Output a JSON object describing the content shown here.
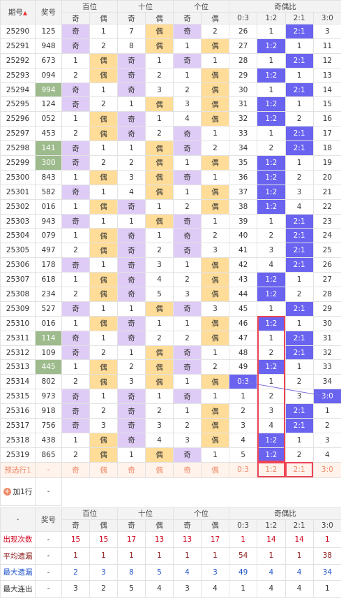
{
  "header": {
    "issue": "期号",
    "number": "奖号",
    "groups": [
      "百位",
      "十位",
      "个位",
      "奇偶比"
    ],
    "sub": [
      "奇",
      "偶",
      "奇",
      "偶",
      "奇",
      "偶",
      "0:3",
      "1:2",
      "2:1",
      "3:0"
    ]
  },
  "rows": [
    {
      "issue": "25290",
      "number": "125",
      "cells": [
        "奇",
        1,
        7,
        "偶",
        "奇",
        2,
        26,
        1,
        "2:1",
        3
      ]
    },
    {
      "issue": "25291",
      "number": "948",
      "cells": [
        "奇",
        2,
        8,
        "偶",
        1,
        "偶",
        27,
        "1:2",
        1,
        11
      ]
    },
    {
      "issue": "25292",
      "number": "673",
      "cells": [
        1,
        "偶",
        "奇",
        1,
        "奇",
        1,
        28,
        1,
        "2:1",
        12
      ]
    },
    {
      "issue": "25293",
      "number": "094",
      "cells": [
        2,
        "偶",
        "奇",
        2,
        1,
        "偶",
        29,
        "1:2",
        1,
        13
      ]
    },
    {
      "issue": "25294",
      "number": "994",
      "highlight": true,
      "cells": [
        "奇",
        1,
        "奇",
        3,
        2,
        "偶",
        30,
        1,
        "2:1",
        14
      ]
    },
    {
      "issue": "25295",
      "number": "124",
      "cells": [
        "奇",
        2,
        1,
        "偶",
        3,
        "偶",
        31,
        "1:2",
        1,
        15
      ]
    },
    {
      "issue": "25296",
      "number": "052",
      "cells": [
        1,
        "偶",
        "奇",
        1,
        4,
        "偶",
        32,
        "1:2",
        2,
        16
      ]
    },
    {
      "issue": "25297",
      "number": "453",
      "cells": [
        2,
        "偶",
        "奇",
        2,
        "奇",
        1,
        33,
        1,
        "2:1",
        17
      ]
    },
    {
      "issue": "25298",
      "number": "141",
      "highlight": true,
      "cells": [
        "奇",
        1,
        1,
        "偶",
        "奇",
        2,
        34,
        2,
        "2:1",
        18
      ]
    },
    {
      "issue": "25299",
      "number": "300",
      "highlight": true,
      "cells": [
        "奇",
        2,
        2,
        "偶",
        1,
        "偶",
        35,
        "1:2",
        1,
        19
      ]
    },
    {
      "issue": "25300",
      "number": "843",
      "cells": [
        1,
        "偶",
        3,
        "偶",
        "奇",
        1,
        36,
        "1:2",
        2,
        20
      ]
    },
    {
      "issue": "25301",
      "number": "582",
      "cells": [
        "奇",
        1,
        4,
        "偶",
        1,
        "偶",
        37,
        "1:2",
        3,
        21
      ]
    },
    {
      "issue": "25302",
      "number": "016",
      "cells": [
        1,
        "偶",
        "奇",
        1,
        2,
        "偶",
        38,
        "1:2",
        4,
        22
      ]
    },
    {
      "issue": "25303",
      "number": "943",
      "cells": [
        "奇",
        1,
        1,
        "偶",
        "奇",
        1,
        39,
        1,
        "2:1",
        23
      ]
    },
    {
      "issue": "25304",
      "number": "079",
      "cells": [
        1,
        "偶",
        "奇",
        1,
        "奇",
        2,
        40,
        2,
        "2:1",
        24
      ]
    },
    {
      "issue": "25305",
      "number": "497",
      "cells": [
        2,
        "偶",
        "奇",
        2,
        "奇",
        3,
        41,
        3,
        "2:1",
        25
      ]
    },
    {
      "issue": "25306",
      "number": "178",
      "cells": [
        "奇",
        1,
        "奇",
        3,
        1,
        "偶",
        42,
        4,
        "2:1",
        26
      ]
    },
    {
      "issue": "25307",
      "number": "618",
      "cells": [
        1,
        "偶",
        "奇",
        4,
        2,
        "偶",
        43,
        "1:2",
        1,
        27
      ]
    },
    {
      "issue": "25308",
      "number": "234",
      "cells": [
        2,
        "偶",
        "奇",
        5,
        3,
        "偶",
        44,
        "1:2",
        2,
        28
      ]
    },
    {
      "issue": "25309",
      "number": "527",
      "cells": [
        "奇",
        1,
        1,
        "偶",
        "奇",
        3,
        45,
        1,
        "2:1",
        29
      ]
    },
    {
      "issue": "25310",
      "number": "016",
      "cells": [
        1,
        "偶",
        "奇",
        1,
        1,
        "偶",
        46,
        "1:2",
        1,
        30
      ]
    },
    {
      "issue": "25311",
      "number": "114",
      "highlight": true,
      "cells": [
        "奇",
        1,
        "奇",
        2,
        2,
        "偶",
        47,
        1,
        "2:1",
        31
      ]
    },
    {
      "issue": "25312",
      "number": "109",
      "cells": [
        "奇",
        2,
        1,
        "偶",
        "奇",
        1,
        48,
        2,
        "2:1",
        32
      ]
    },
    {
      "issue": "25313",
      "number": "445",
      "highlight": true,
      "cells": [
        1,
        "偶",
        2,
        "偶",
        "奇",
        2,
        49,
        "1:2",
        1,
        33
      ]
    },
    {
      "issue": "25314",
      "number": "802",
      "cells": [
        2,
        "偶",
        3,
        "偶",
        1,
        "偶",
        "0:3",
        1,
        2,
        34
      ]
    },
    {
      "issue": "25315",
      "number": "973",
      "cells": [
        "奇",
        1,
        "奇",
        1,
        "奇",
        1,
        1,
        2,
        3,
        "3:0"
      ]
    },
    {
      "issue": "25316",
      "number": "918",
      "cells": [
        "奇",
        2,
        "奇",
        2,
        1,
        "偶",
        2,
        3,
        "2:1",
        1
      ]
    },
    {
      "issue": "25317",
      "number": "756",
      "cells": [
        "奇",
        3,
        "奇",
        3,
        2,
        "偶",
        3,
        4,
        "2:1",
        2
      ]
    },
    {
      "issue": "25318",
      "number": "438",
      "cells": [
        1,
        "偶",
        "奇",
        4,
        3,
        "偶",
        4,
        "1:2",
        1,
        3
      ]
    },
    {
      "issue": "25319",
      "number": "865",
      "cells": [
        2,
        "偶",
        1,
        "偶",
        "奇",
        1,
        5,
        "1:2",
        2,
        4
      ]
    }
  ],
  "preselect": {
    "label": "预选行1",
    "number": "-",
    "cells": [
      "奇",
      "偶",
      "奇",
      "偶",
      "奇",
      "偶",
      "0:3",
      "1:2",
      "2:1",
      "3:0"
    ]
  },
  "add_row": {
    "label": "加1行",
    "value": "-"
  },
  "footer": {
    "header": {
      "issue": "-",
      "number": "奖号",
      "groups": [
        "百位",
        "十位",
        "个位",
        "奇偶比"
      ],
      "sub": [
        "奇",
        "偶",
        "奇",
        "偶",
        "奇",
        "偶",
        "0:3",
        "1:2",
        "2:1",
        "3:0"
      ]
    },
    "stats": [
      {
        "label": "出现次数",
        "number": "-",
        "values": [
          15,
          15,
          17,
          13,
          13,
          17,
          1,
          14,
          14,
          1
        ]
      },
      {
        "label": "平均遗漏",
        "number": "-",
        "values": [
          1,
          1,
          1,
          1,
          1,
          1,
          54,
          1,
          1,
          38
        ]
      },
      {
        "label": "最大遗漏",
        "number": "-",
        "values": [
          2,
          3,
          8,
          5,
          4,
          3,
          49,
          4,
          4,
          34
        ]
      },
      {
        "label": "最大连出",
        "number": "-",
        "values": [
          3,
          2,
          5,
          4,
          3,
          4,
          1,
          4,
          4,
          1
        ]
      }
    ]
  }
}
